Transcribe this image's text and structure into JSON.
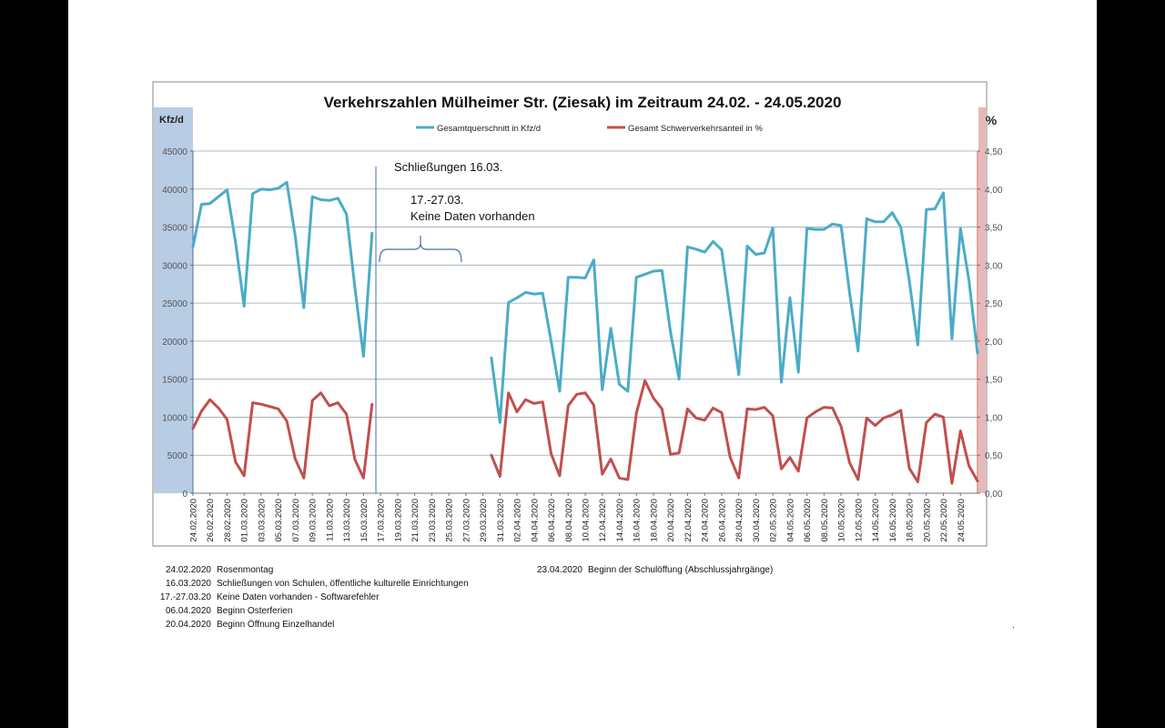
{
  "chart_data": {
    "type": "line",
    "title": "Verkehrszahlen Mülheimer Str. (Ziesak) im Zeitraum 24.02. - 24.05.2020",
    "y_left_unit": "Kfz/d",
    "y_right_unit": "%",
    "y_left_ticks": [
      "0",
      "5000",
      "10000",
      "15000",
      "20000",
      "25000",
      "30000",
      "35000",
      "40000",
      "45000"
    ],
    "y_right_ticks": [
      "0,00",
      "0,50",
      "1,00",
      "1,50",
      "2,00",
      "2,50",
      "3,00",
      "3,50",
      "4,00",
      "4,50"
    ],
    "ylim_left": [
      0,
      45000
    ],
    "ylim_right": [
      0,
      4.5
    ],
    "x_tick_labels": [
      "24.02.2020",
      "26.02.2020",
      "28.02.2020",
      "01.03.2020",
      "03.03.2020",
      "05.03.2020",
      "07.03.2020",
      "09.03.2020",
      "11.03.2020",
      "13.03.2020",
      "15.03.2020",
      "17.03.2020",
      "19.03.2020",
      "21.03.2020",
      "23.03.2020",
      "25.03.2020",
      "27.03.2020",
      "29.03.2020",
      "31.03.2020",
      "02.04.2020",
      "04.04.2020",
      "06.04.2020",
      "08.04.2020",
      "10.04.2020",
      "12.04.2020",
      "14.04.2020",
      "16.04.2020",
      "18.04.2020",
      "20.04.2020",
      "22.04.2020",
      "24.04.2020",
      "26.04.2020",
      "28.04.2020",
      "30.04.2020",
      "02.05.2020",
      "04.05.2020",
      "06.05.2020",
      "08.05.2020",
      "10.05.2020",
      "12.05.2020",
      "14.05.2020",
      "16.05.2020",
      "18.05.2020",
      "20.05.2020",
      "22.05.2020",
      "24.05.2020"
    ],
    "legend_position": "top",
    "grid": true,
    "series": [
      {
        "name": "Gesamtquerschnitt in Kfz/d",
        "axis": "left",
        "color": "#4BACC6",
        "values": [
          32400,
          38000,
          38100,
          39000,
          39900,
          33000,
          24600,
          39400,
          40000,
          39900,
          40100,
          40900,
          33800,
          24400,
          39000,
          38600,
          38500,
          38800,
          36700,
          27000,
          18000,
          34200,
          null,
          null,
          null,
          null,
          null,
          null,
          null,
          null,
          null,
          null,
          null,
          null,
          null,
          17800,
          9300,
          25100,
          25700,
          26400,
          26200,
          26300,
          20000,
          13400,
          28400,
          28400,
          28300,
          30700,
          13600,
          21700,
          14300,
          13400,
          28400,
          28800,
          29200,
          29300,
          21200,
          15000,
          32400,
          32100,
          31700,
          33100,
          32000,
          23800,
          15600,
          32500,
          31400,
          31600,
          34900,
          14600,
          25700,
          15900,
          34800,
          34700,
          34700,
          35400,
          35200,
          26300,
          18700,
          36100,
          35700,
          35700,
          36900,
          35000,
          28000,
          19500,
          37300,
          37400,
          39500,
          20300,
          34800,
          28000,
          18400
        ]
      },
      {
        "name": "Gesamt Schwerverkehrsanteil in %",
        "axis": "right",
        "color": "#C0504D",
        "values": [
          0.85,
          1.08,
          1.23,
          1.12,
          0.97,
          0.41,
          0.23,
          1.19,
          1.17,
          1.14,
          1.11,
          0.95,
          0.45,
          0.2,
          1.22,
          1.32,
          1.15,
          1.19,
          1.04,
          0.44,
          0.2,
          1.17,
          null,
          null,
          null,
          null,
          null,
          null,
          null,
          null,
          null,
          null,
          null,
          null,
          null,
          0.5,
          0.22,
          1.32,
          1.07,
          1.23,
          1.18,
          1.2,
          0.52,
          0.23,
          1.15,
          1.3,
          1.32,
          1.16,
          0.25,
          0.45,
          0.2,
          0.18,
          1.05,
          1.48,
          1.25,
          1.11,
          0.51,
          0.53,
          1.11,
          0.99,
          0.96,
          1.12,
          1.06,
          0.47,
          0.2,
          1.11,
          1.1,
          1.13,
          1.02,
          0.32,
          0.47,
          0.29,
          0.99,
          1.07,
          1.13,
          1.12,
          0.88,
          0.4,
          0.18,
          0.99,
          0.89,
          0.99,
          1.03,
          1.09,
          0.33,
          0.15,
          0.93,
          1.04,
          1.0,
          0.13,
          0.82,
          0.36,
          0.16
        ]
      }
    ],
    "annotations": [
      {
        "text": "Schließungen 16.03."
      },
      {
        "text": "17.-27.03."
      },
      {
        "text": "Keine Daten vorhanden"
      }
    ]
  },
  "notes": [
    {
      "date": "24.02.2020",
      "text": "Rosenmontag"
    },
    {
      "date": "16.03.2020",
      "text": "Schließungen von Schulen, öffentliche kulturelle Einrichtungen"
    },
    {
      "date": "17.-27.03.20",
      "text": "Keine Daten vorhanden - Softwarefehler"
    },
    {
      "date": "06.04.2020",
      "text": "Beginn Osterferien"
    },
    {
      "date": "20.04.2020",
      "text": "Beginn Öffnung Einzelhandel"
    },
    {
      "date": "23.04.2020",
      "text": "Beginn der Schulöffung (Abschlussjahrgänge)"
    }
  ],
  "footer_mark": "."
}
